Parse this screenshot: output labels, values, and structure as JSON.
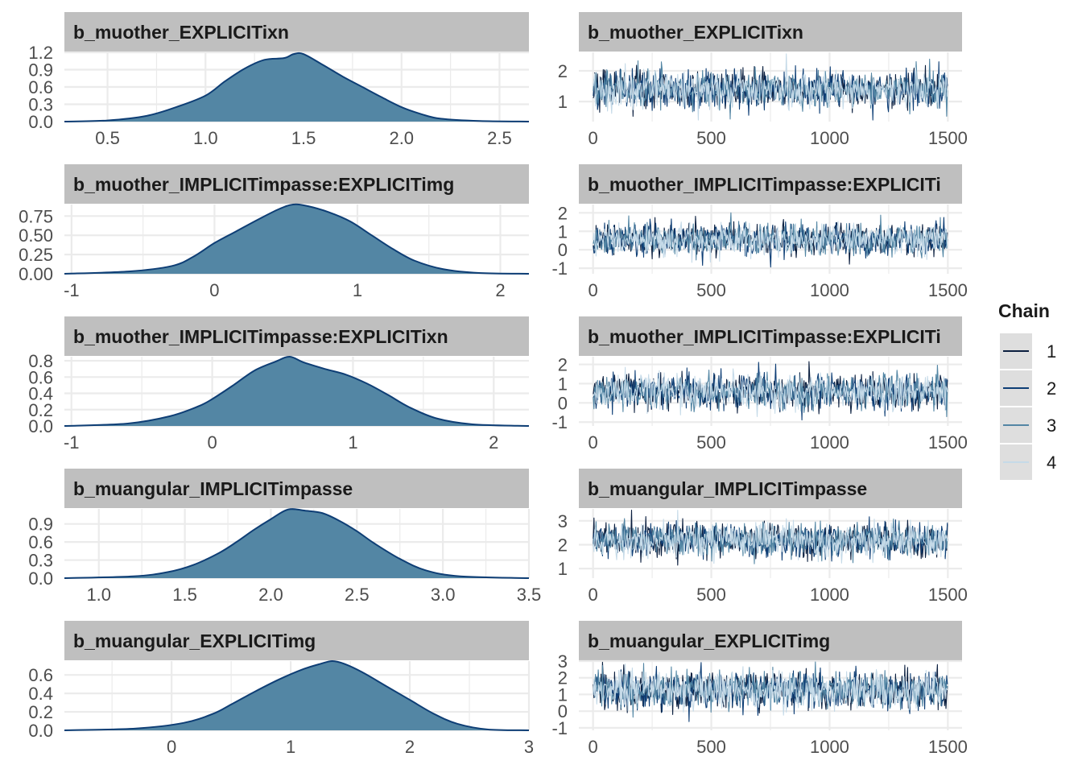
{
  "colors": {
    "density_fill": "#5386a4",
    "density_line": "#0e3e75",
    "strip_bg": "#bfbfbf",
    "grid": "#ebebeb",
    "chains": [
      "#0b1f3f",
      "#0e3e75",
      "#5386a4",
      "#c5dae8"
    ],
    "legend_key_bg": "#dedede"
  },
  "legend": {
    "title": "Chain",
    "entries": [
      "1",
      "2",
      "3",
      "4"
    ]
  },
  "chart_data": [
    {
      "type": "area",
      "panel": "density",
      "title": "b_muother_EXPLICITixn",
      "xlim": [
        0.28,
        2.65
      ],
      "ylim": [
        0,
        1.2
      ],
      "xticks": [
        0.5,
        1.0,
        1.5,
        2.0,
        2.5
      ],
      "xtick_labels": [
        "0.5",
        "1.0",
        "1.5",
        "2.0",
        "2.5"
      ],
      "yticks": [
        0.0,
        0.3,
        0.6,
        0.9,
        1.2
      ],
      "ytick_labels": [
        "0.0",
        "0.3",
        "0.6",
        "0.9",
        "1.2"
      ],
      "x": [
        0.28,
        0.5,
        0.7,
        0.85,
        1.0,
        1.1,
        1.2,
        1.3,
        1.4,
        1.45,
        1.5,
        1.6,
        1.7,
        1.8,
        1.9,
        2.0,
        2.1,
        2.2,
        2.4,
        2.65
      ],
      "y": [
        0.0,
        0.02,
        0.1,
        0.25,
        0.45,
        0.7,
        0.92,
        1.07,
        1.1,
        1.17,
        1.17,
        0.98,
        0.78,
        0.6,
        0.42,
        0.25,
        0.13,
        0.05,
        0.01,
        0.0
      ]
    },
    {
      "type": "line",
      "panel": "trace",
      "title": "b_muother_EXPLICITixn",
      "xlim": [
        -60,
        1560
      ],
      "ylim": [
        0.35,
        2.6
      ],
      "xticks": [
        0,
        500,
        1000,
        1500
      ],
      "xtick_labels": [
        "0",
        "500",
        "1000",
        "1500"
      ],
      "yticks": [
        1,
        2
      ],
      "ytick_labels": [
        "1",
        "2"
      ],
      "trace_mean": 1.4,
      "trace_sd": 0.3,
      "iterations": 1500
    },
    {
      "type": "area",
      "panel": "density",
      "title": "b_muother_IMPLICITimpasse:EXPLICITimg",
      "xlim": [
        -1.05,
        2.2
      ],
      "ylim": [
        0,
        0.9
      ],
      "xticks": [
        -1,
        0,
        1,
        2
      ],
      "xtick_labels": [
        "-1",
        "0",
        "1",
        "2"
      ],
      "yticks": [
        0.0,
        0.25,
        0.5,
        0.75
      ],
      "ytick_labels": [
        "0.00",
        "0.25",
        "0.50",
        "0.75"
      ],
      "x": [
        -1.05,
        -0.6,
        -0.3,
        -0.15,
        0.0,
        0.15,
        0.3,
        0.45,
        0.55,
        0.65,
        0.8,
        0.95,
        1.1,
        1.25,
        1.4,
        1.6,
        1.85,
        2.2
      ],
      "y": [
        0.0,
        0.03,
        0.1,
        0.22,
        0.4,
        0.55,
        0.7,
        0.84,
        0.9,
        0.88,
        0.8,
        0.68,
        0.5,
        0.32,
        0.17,
        0.06,
        0.01,
        0.0
      ]
    },
    {
      "type": "line",
      "panel": "trace",
      "title": "b_muother_IMPLICITimpasse:EXPLICITi",
      "xlim": [
        -60,
        1560
      ],
      "ylim": [
        -1.3,
        2.45
      ],
      "xticks": [
        0,
        500,
        1000,
        1500
      ],
      "xtick_labels": [
        "0",
        "500",
        "1000",
        "1500"
      ],
      "yticks": [
        -1,
        0,
        1,
        2
      ],
      "ytick_labels": [
        "-1",
        "0",
        "1",
        "2"
      ],
      "trace_mean": 0.55,
      "trace_sd": 0.42,
      "iterations": 1500
    },
    {
      "type": "area",
      "panel": "density",
      "title": "b_muother_IMPLICITimpasse:EXPLICITixn",
      "xlim": [
        -1.05,
        2.25
      ],
      "ylim": [
        0,
        0.85
      ],
      "xticks": [
        -1,
        0,
        1,
        2
      ],
      "xtick_labels": [
        "-1",
        "0",
        "1",
        "2"
      ],
      "yticks": [
        0.0,
        0.2,
        0.4,
        0.6,
        0.8
      ],
      "ytick_labels": [
        "0.0",
        "0.2",
        "0.4",
        "0.6",
        "0.8"
      ],
      "x": [
        -1.05,
        -0.6,
        -0.3,
        -0.1,
        0.0,
        0.15,
        0.3,
        0.45,
        0.55,
        0.65,
        0.8,
        0.95,
        1.1,
        1.25,
        1.4,
        1.6,
        1.85,
        2.25
      ],
      "y": [
        0.0,
        0.03,
        0.12,
        0.24,
        0.33,
        0.5,
        0.68,
        0.79,
        0.85,
        0.78,
        0.7,
        0.63,
        0.52,
        0.38,
        0.23,
        0.09,
        0.02,
        0.0
      ]
    },
    {
      "type": "line",
      "panel": "trace",
      "title": "b_muother_IMPLICITimpasse:EXPLICITi",
      "xlim": [
        -60,
        1560
      ],
      "ylim": [
        -1.2,
        2.4
      ],
      "xticks": [
        0,
        500,
        1000,
        1500
      ],
      "xtick_labels": [
        "0",
        "500",
        "1000",
        "1500"
      ],
      "yticks": [
        -1,
        0,
        1,
        2
      ],
      "ytick_labels": [
        "-1",
        "0",
        "1",
        "2"
      ],
      "trace_mean": 0.6,
      "trace_sd": 0.45,
      "iterations": 1500
    },
    {
      "type": "area",
      "panel": "density",
      "title": "b_muangular_IMPLICITimpasse",
      "xlim": [
        0.8,
        3.5
      ],
      "ylim": [
        0,
        1.15
      ],
      "xticks": [
        1.0,
        1.5,
        2.0,
        2.5,
        3.0,
        3.5
      ],
      "xtick_labels": [
        "1.0",
        "1.5",
        "2.0",
        "2.5",
        "3.0",
        "3.5"
      ],
      "yticks": [
        0.0,
        0.3,
        0.6,
        0.9
      ],
      "ytick_labels": [
        "0.0",
        "0.3",
        "0.6",
        "0.9"
      ],
      "x": [
        0.8,
        1.2,
        1.4,
        1.55,
        1.7,
        1.8,
        1.9,
        2.0,
        2.1,
        2.2,
        2.3,
        2.4,
        2.5,
        2.6,
        2.75,
        2.9,
        3.1,
        3.5
      ],
      "y": [
        0.0,
        0.03,
        0.1,
        0.22,
        0.42,
        0.6,
        0.8,
        0.98,
        1.14,
        1.12,
        1.08,
        0.95,
        0.78,
        0.58,
        0.32,
        0.13,
        0.03,
        0.0
      ]
    },
    {
      "type": "line",
      "panel": "trace",
      "title": "b_muangular_IMPLICITimpasse",
      "xlim": [
        -60,
        1560
      ],
      "ylim": [
        0.6,
        3.5
      ],
      "xticks": [
        0,
        500,
        1000,
        1500
      ],
      "xtick_labels": [
        "0",
        "500",
        "1000",
        "1500"
      ],
      "yticks": [
        1,
        2,
        3
      ],
      "ytick_labels": [
        "1",
        "2",
        "3"
      ],
      "trace_mean": 2.2,
      "trace_sd": 0.35,
      "iterations": 1500
    },
    {
      "type": "area",
      "panel": "density",
      "title": "b_muangular_EXPLICITimg",
      "xlim": [
        -0.9,
        3.0
      ],
      "ylim": [
        0,
        0.75
      ],
      "xticks": [
        0,
        1,
        2,
        3
      ],
      "xtick_labels": [
        "0",
        "1",
        "2",
        "3"
      ],
      "yticks": [
        0.0,
        0.2,
        0.4,
        0.6
      ],
      "ytick_labels": [
        "0.0",
        "0.2",
        "0.4",
        "0.6"
      ],
      "x": [
        -0.9,
        -0.3,
        0.1,
        0.35,
        0.5,
        0.7,
        0.9,
        1.1,
        1.25,
        1.35,
        1.45,
        1.6,
        1.8,
        2.0,
        2.2,
        2.4,
        2.65,
        3.0
      ],
      "y": [
        0.0,
        0.02,
        0.08,
        0.18,
        0.28,
        0.42,
        0.55,
        0.66,
        0.72,
        0.75,
        0.72,
        0.63,
        0.48,
        0.33,
        0.18,
        0.07,
        0.01,
        0.0
      ]
    },
    {
      "type": "line",
      "panel": "trace",
      "title": "b_muangular_EXPLICITimg",
      "xlim": [
        -60,
        1560
      ],
      "ylim": [
        -1.15,
        3.0
      ],
      "xticks": [
        0,
        500,
        1000,
        1500
      ],
      "xtick_labels": [
        "0",
        "500",
        "1000",
        "1500"
      ],
      "yticks": [
        -1,
        0,
        1,
        2,
        3
      ],
      "ytick_labels": [
        "-1",
        "0",
        "1",
        "2",
        "3"
      ],
      "trace_mean": 1.3,
      "trace_sd": 0.55,
      "iterations": 1500
    }
  ]
}
